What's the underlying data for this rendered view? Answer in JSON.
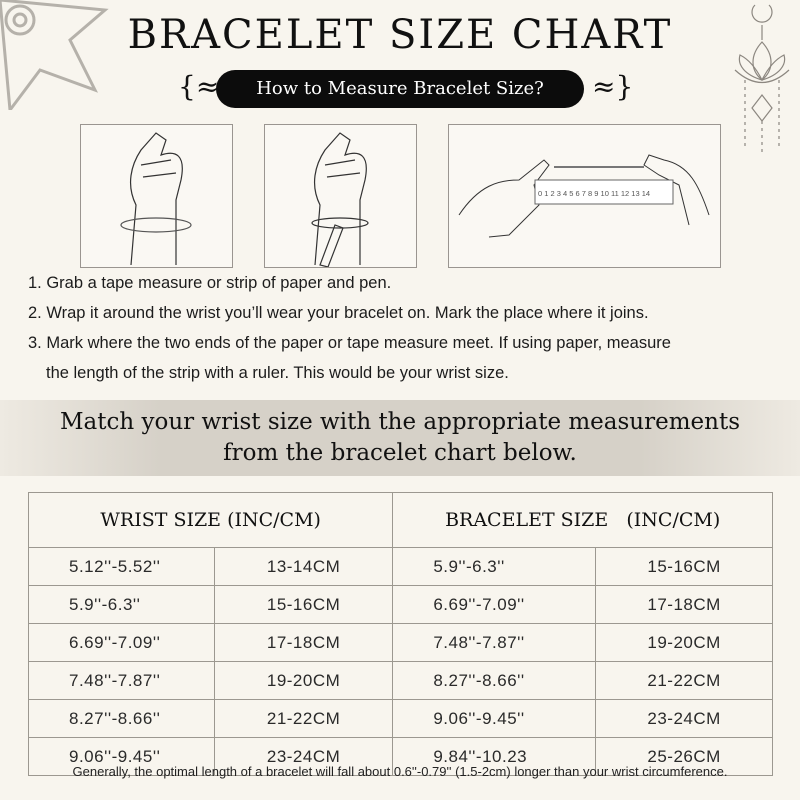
{
  "header": {
    "title": "BRACELET SIZE CHART",
    "subtitle": "How to Measure Bracelet Size?"
  },
  "illustrations": {
    "ruler_numbers": [
      "0",
      "1",
      "2",
      "3",
      "4",
      "5",
      "6",
      "7",
      "8",
      "9",
      "10",
      "11",
      "12",
      "13",
      "14"
    ]
  },
  "instructions": [
    "1. Grab a tape measure or strip of paper and pen.",
    "2. Wrap it around the wrist you’ll wear your bracelet on. Mark the place where it joins.",
    "3. Mark where the two ends of the paper or tape measure meet. If using paper, measure",
    "the length of the strip with a ruler. This would be your wrist size."
  ],
  "banner": {
    "line1": "Match your wrist size with the appropriate measurements",
    "line2": "from the bracelet chart below."
  },
  "table": {
    "headers": [
      "WRIST SIZE (INC/CM)",
      "BRACELET SIZE   (INC/CM)"
    ],
    "rows": [
      [
        "5.12''-5.52''",
        "13-14CM",
        "5.9''-6.3''",
        "15-16CM"
      ],
      [
        "5.9''-6.3''",
        "15-16CM",
        "6.69''-7.09''",
        "17-18CM"
      ],
      [
        "6.69''-7.09''",
        "17-18CM",
        "7.48''-7.87''",
        "19-20CM"
      ],
      [
        "7.48''-7.87''",
        "19-20CM",
        "8.27''-8.66''",
        "21-22CM"
      ],
      [
        "8.27''-8.66''",
        "21-22CM",
        "9.06''-9.45''",
        "23-24CM"
      ],
      [
        "9.06''-9.45''",
        "23-24CM",
        "9.84''-10.23",
        "25-26CM"
      ]
    ]
  },
  "footer": "Generally, the optimal length of a bracelet will fall about 0.6''-0.79'' (1.5-2cm) longer than your wrist circumference."
}
